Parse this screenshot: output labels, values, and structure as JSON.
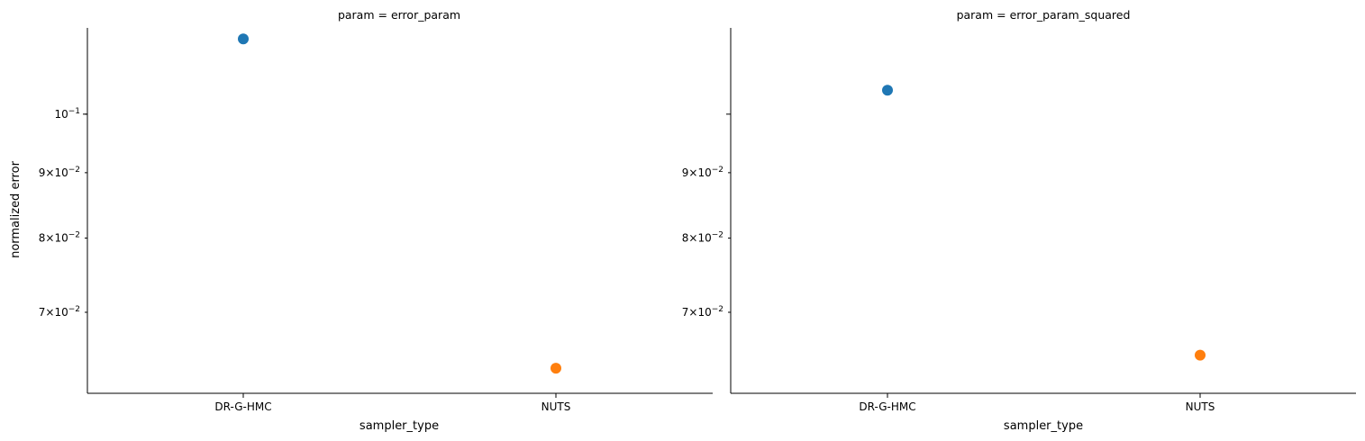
{
  "chart_data": {
    "type": "scatter",
    "ylabel": "normalized error",
    "yscale": "log",
    "ylim": [
      0.0605,
      0.1168
    ],
    "legend": "none",
    "grid": false,
    "colors": {
      "DR-G-HMC": "#1f77b4",
      "NUTS": "#ff7f0e"
    },
    "panels": [
      {
        "title": "param = error_param",
        "xlabel": "sampler_type",
        "categories": [
          "DR-G-HMC",
          "NUTS"
        ],
        "values": [
          0.1145,
          0.0633
        ],
        "ytick_labels": [
          {
            "value": 0.1,
            "label": "10",
            "exp": "−1"
          },
          {
            "value": 0.09,
            "label": "9×10",
            "exp": "−2"
          },
          {
            "value": 0.08,
            "label": "8×10",
            "exp": "−2"
          },
          {
            "value": 0.07,
            "label": "7×10",
            "exp": "−2"
          }
        ]
      },
      {
        "title": "param = error_param_squared",
        "xlabel": "sampler_type",
        "categories": [
          "DR-G-HMC",
          "NUTS"
        ],
        "values": [
          0.1044,
          0.0648
        ],
        "ytick_labels": [
          {
            "value": 0.09,
            "label": "9×10",
            "exp": "−2"
          },
          {
            "value": 0.08,
            "label": "8×10",
            "exp": "−2"
          },
          {
            "value": 0.07,
            "label": "7×10",
            "exp": "−2"
          }
        ]
      }
    ]
  }
}
